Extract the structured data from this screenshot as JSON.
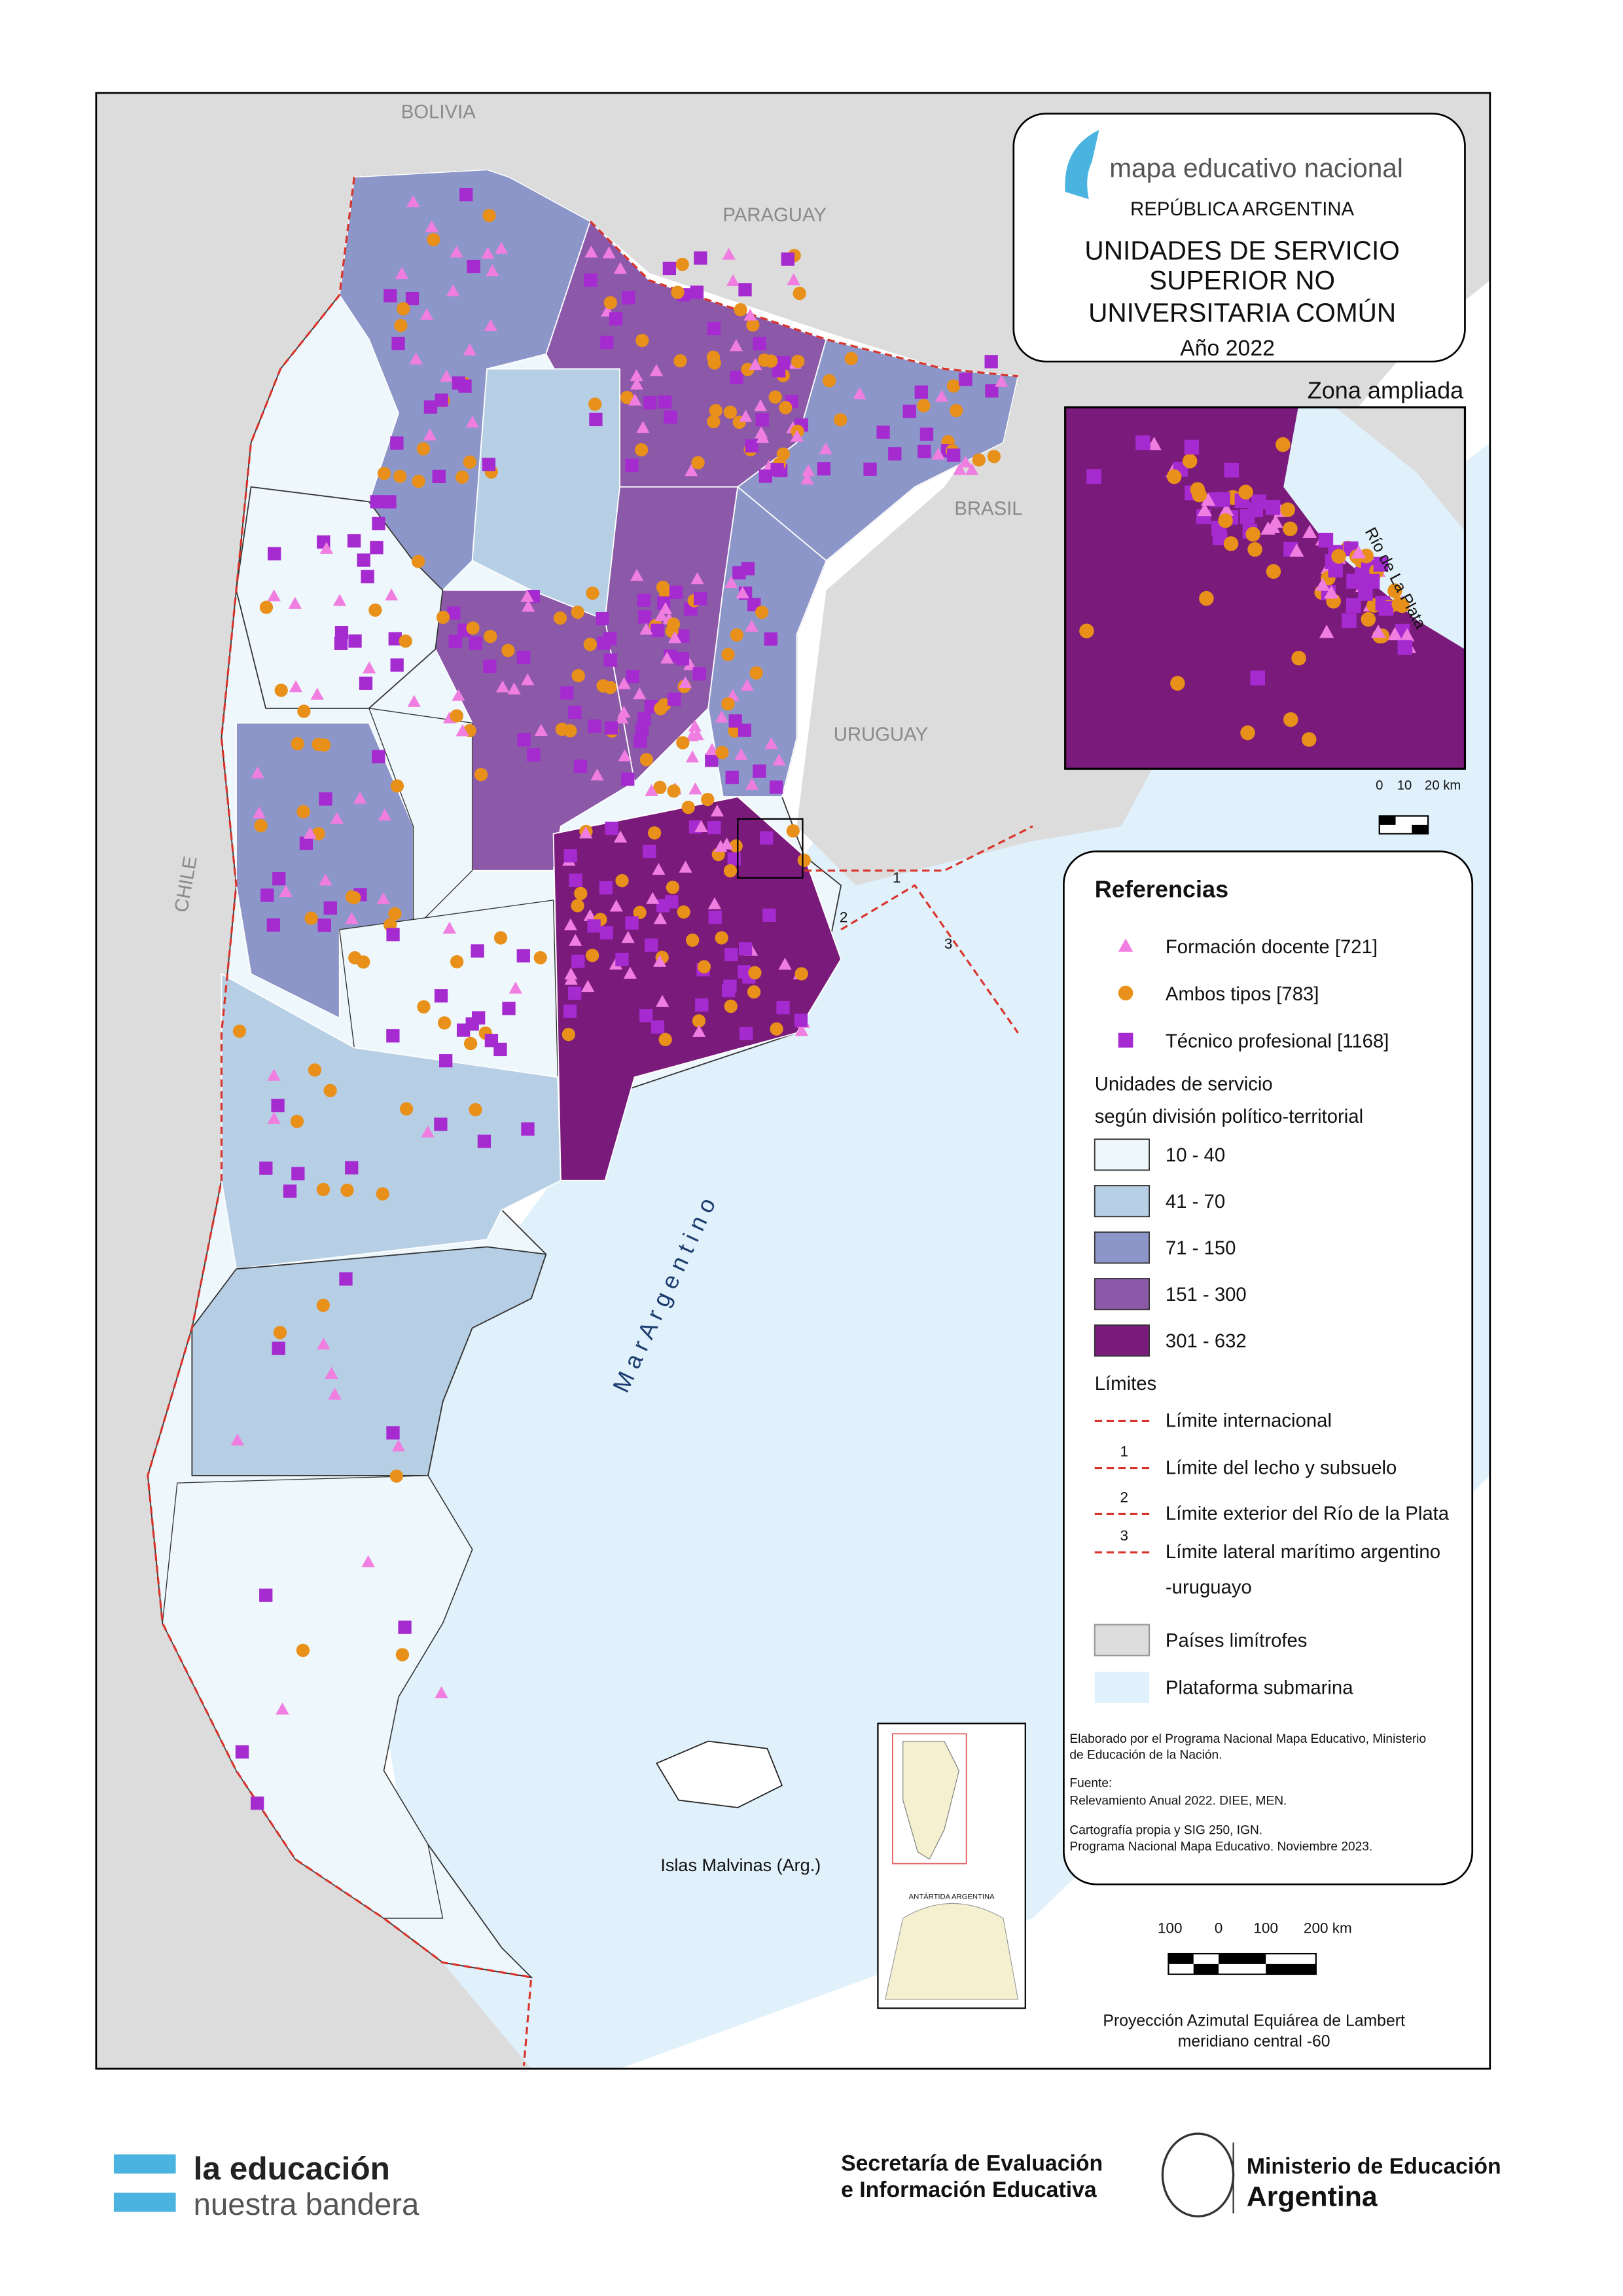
{
  "map": {
    "neighbors": [
      "BOLIVIA",
      "PARAGUAY",
      "BRASIL",
      "URUGUAY",
      "CHILE"
    ],
    "sea": "M a r   A r g e n t i n o",
    "islands": "Islas Malvinas (Arg.)",
    "river": "Río de La Plata",
    "boundary_numbers": [
      "1",
      "2",
      "3"
    ],
    "antarctica": "ANTÁRTIDA ARGENTINA"
  },
  "title_box": {
    "brand": "mapa educativo nacional",
    "country": "REPÚBLICA  ARGENTINA",
    "title_lines": [
      "UNIDADES DE SERVICIO",
      "SUPERIOR NO",
      "UNIVERSITARIA COMÚN"
    ],
    "year": "Año 2022"
  },
  "inset": {
    "title": "Zona ampliada",
    "scale_labels": [
      "0",
      "10",
      "20 km"
    ]
  },
  "legend": {
    "title": "Referencias",
    "symbols": [
      "Formación docente [721]",
      "Ambos tipos [783]",
      "Técnico profesional [1168]"
    ],
    "classes_title": [
      "Unidades de servicio",
      "según división político-territorial"
    ],
    "classes": [
      "10 - 40",
      "41 - 70",
      "71 - 150",
      "151 - 300",
      "301 - 632"
    ],
    "limits_title": "Límites",
    "limits": [
      "Límite internacional",
      "Límite del lecho y subsuelo",
      "Límite exterior del Río de la Plata",
      "Límite lateral marítimo argentino",
      "-uruguayo"
    ],
    "limit_numbers": [
      "1",
      "2",
      "3"
    ],
    "areas": [
      "Países limítrofes",
      "Plataforma submarina"
    ],
    "notes": [
      "Elaborado por el Programa Nacional Mapa Educativo, Ministerio",
      "de Educación de la Nación.",
      "Fuente:",
      "Relevamiento Anual 2022.  DIEE, MEN.",
      "Cartografía propia y SIG 250, IGN.",
      "Programa Nacional Mapa Educativo. Noviembre 2023."
    ]
  },
  "scale": {
    "labels": [
      "100",
      "0",
      "100",
      "200 km"
    ]
  },
  "projection": [
    "Proyección Azimutal Equiárea de Lambert",
    "meridiano central -60"
  ],
  "footer": {
    "slogan": [
      "la educación",
      "nuestra bandera"
    ],
    "secretaria": [
      "Secretaría de Evaluación",
      "e Información Educativa"
    ],
    "ministerio": [
      "Ministerio de Educación",
      "Argentina"
    ]
  }
}
